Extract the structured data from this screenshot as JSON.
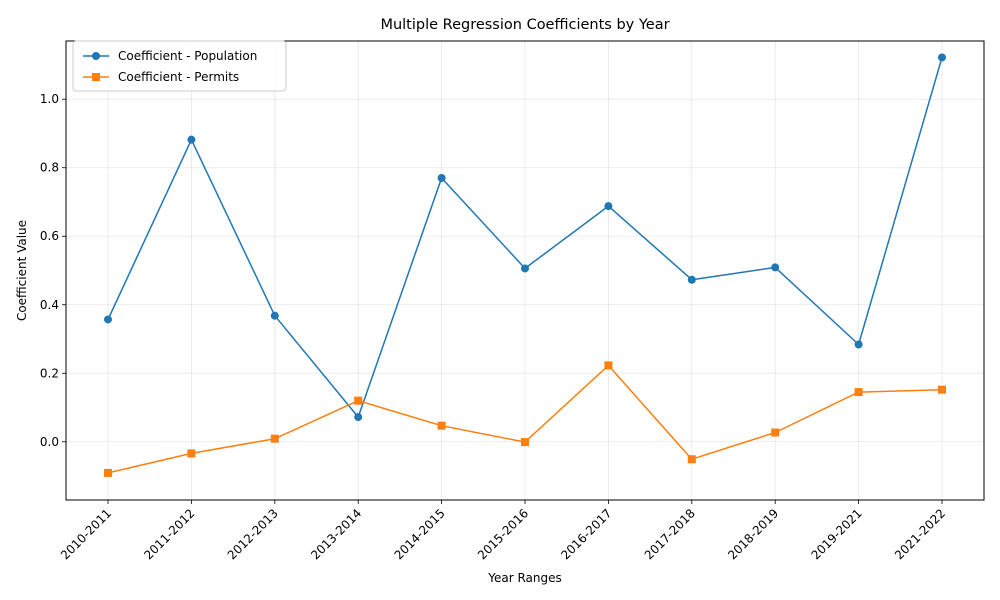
{
  "chart_data": {
    "type": "line",
    "title": "Multiple Regression Coefficients by Year",
    "xlabel": "Year Ranges",
    "ylabel": "Coefficient Value",
    "categories": [
      "2010-2011",
      "2011-2012",
      "2012-2013",
      "2013-2014",
      "2014-2015",
      "2015-2016",
      "2016-2017",
      "2017-2018",
      "2018-2019",
      "2019-2021",
      "2021-2022"
    ],
    "series": [
      {
        "name": "Coefficient - Population",
        "color": "#1f77b4",
        "marker": "circle",
        "values": [
          0.357,
          0.882,
          0.368,
          0.072,
          0.77,
          0.506,
          0.688,
          0.473,
          0.509,
          0.284,
          1.122
        ]
      },
      {
        "name": "Coefficient - Permits",
        "color": "#ff7f0e",
        "marker": "square",
        "values": [
          -0.091,
          -0.034,
          0.009,
          0.12,
          0.047,
          -0.001,
          0.223,
          -0.051,
          0.027,
          0.145,
          0.152
        ]
      }
    ],
    "ylim": [
      -0.17,
      1.17
    ],
    "yticks": [
      0.0,
      0.2,
      0.4,
      0.6,
      0.8,
      1.0
    ],
    "ytick_labels": [
      "0.0",
      "0.2",
      "0.4",
      "0.6",
      "0.8",
      "1.0"
    ],
    "grid": true,
    "legend_position": "top-left"
  }
}
